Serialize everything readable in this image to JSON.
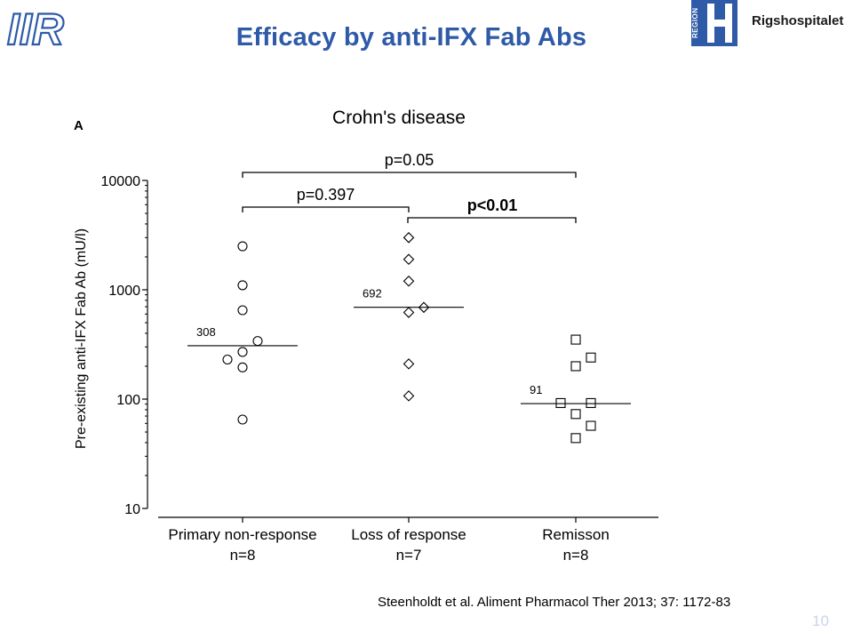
{
  "header": {
    "logo_text": "IIR",
    "title": "Efficacy by anti-IFX Fab Abs",
    "region_label": "REGION",
    "organization": "Rigshospitalet"
  },
  "footer": {
    "citation": "Steenholdt et al. Aliment Pharmacol Ther 2013; 37: 1172-83",
    "page_number": "10"
  },
  "colors": {
    "title": "#2e5aa7",
    "region_logo": "#2e5aa7",
    "page_number": "#c9d3ea"
  },
  "chart_data": {
    "type": "scatter",
    "panel_label": "A",
    "title": "Crohn's disease",
    "xlabel": "",
    "ylabel": "Pre-existing anti-IFX Fab Ab (mU/l)",
    "y_scale": "log",
    "ylim": [
      10,
      10000
    ],
    "y_ticks": [
      {
        "value": 10,
        "label": "10"
      },
      {
        "value": 100,
        "label": "100"
      },
      {
        "value": 1000,
        "label": "1000"
      },
      {
        "value": 10000,
        "label": "10000"
      }
    ],
    "grid": false,
    "categories": [
      {
        "label": "Primary non-response",
        "n_label": "n=8"
      },
      {
        "label": "Loss of response",
        "n_label": "n=7"
      },
      {
        "label": "Remisson",
        "n_label": "n=8"
      }
    ],
    "series": [
      {
        "marker": "circle",
        "median": 308,
        "median_label": "308",
        "points": [
          {
            "offset": 0,
            "value": 2500
          },
          {
            "offset": 0,
            "value": 1100
          },
          {
            "offset": 0,
            "value": 650
          },
          {
            "offset": 1,
            "value": 340
          },
          {
            "offset": 0,
            "value": 270
          },
          {
            "offset": -1,
            "value": 230
          },
          {
            "offset": 0,
            "value": 195
          },
          {
            "offset": 0,
            "value": 65
          }
        ]
      },
      {
        "marker": "diamond",
        "median": 692,
        "median_label": "692",
        "points": [
          {
            "offset": 0,
            "value": 3000
          },
          {
            "offset": 0,
            "value": 1900
          },
          {
            "offset": 0,
            "value": 1200
          },
          {
            "offset": 1,
            "value": 690
          },
          {
            "offset": 0,
            "value": 620
          },
          {
            "offset": 0,
            "value": 210
          },
          {
            "offset": 0,
            "value": 107
          }
        ]
      },
      {
        "marker": "square",
        "median": 91,
        "median_label": "91",
        "points": [
          {
            "offset": 0,
            "value": 350
          },
          {
            "offset": 1,
            "value": 240
          },
          {
            "offset": 0,
            "value": 200
          },
          {
            "offset": -1,
            "value": 92
          },
          {
            "offset": 1,
            "value": 92
          },
          {
            "offset": 0,
            "value": 73
          },
          {
            "offset": 1,
            "value": 57
          },
          {
            "offset": 0,
            "value": 44
          }
        ]
      }
    ],
    "comparisons": [
      {
        "from": 0,
        "to": 2,
        "label": "p=0.05",
        "bold": false,
        "level": 3
      },
      {
        "from": 0,
        "to": 1,
        "label": "p=0.397",
        "bold": false,
        "level": 2
      },
      {
        "from": 1,
        "to": 2,
        "label": "p<0.01",
        "bold": true,
        "level": 1
      }
    ]
  }
}
